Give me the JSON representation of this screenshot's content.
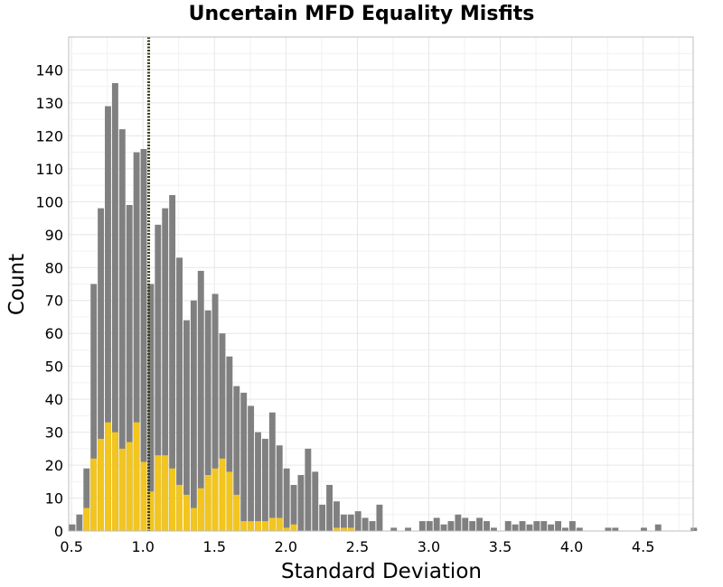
{
  "chart_data": {
    "type": "bar",
    "title": "Uncertain MFD Equality Misfits",
    "xlabel": "Standard Deviation",
    "ylabel": "Count",
    "xlim": [
      0.48,
      4.85
    ],
    "ylim": [
      0,
      150
    ],
    "bin_start": 0.48,
    "bin_width": 0.05,
    "x_ticks": [
      0.5,
      1.0,
      1.5,
      2.0,
      2.5,
      3.0,
      3.5,
      4.0,
      4.5
    ],
    "x_tick_labels": [
      "0.5",
      "1.0",
      "1.5",
      "2.0",
      "2.5",
      "3.0",
      "3.5",
      "4.0",
      "4.5"
    ],
    "y_ticks": [
      0,
      10,
      20,
      30,
      40,
      50,
      60,
      70,
      80,
      90,
      100,
      110,
      120,
      130,
      140
    ],
    "y_tick_labels": [
      "0",
      "10",
      "20",
      "30",
      "40",
      "50",
      "60",
      "70",
      "80",
      "90",
      "100",
      "110",
      "120",
      "130",
      "140"
    ],
    "grid": true,
    "reference_line": {
      "x": 1.04,
      "style": "dotted",
      "color": "#3a3a1a"
    },
    "series": [
      {
        "color": "#808080",
        "values": [
          2,
          5,
          19,
          75,
          98,
          129,
          136,
          122,
          99,
          115,
          116,
          75,
          93,
          98,
          102,
          83,
          64,
          70,
          79,
          67,
          72,
          60,
          53,
          44,
          42,
          38,
          30,
          28,
          36,
          26,
          19,
          14,
          17,
          25,
          18,
          8,
          14,
          9,
          5,
          5,
          6,
          4,
          3,
          8,
          0,
          1,
          0,
          1,
          0,
          3,
          3,
          4,
          2,
          3,
          5,
          4,
          3,
          4,
          3,
          1,
          0,
          3,
          2,
          3,
          2,
          3,
          3,
          2,
          3,
          1,
          3,
          1,
          0,
          0,
          0,
          1,
          1,
          0,
          0,
          0,
          1,
          0,
          2,
          0,
          0,
          0,
          0,
          1
        ]
      },
      {
        "color": "#f2c51f",
        "values": [
          0,
          0,
          7,
          22,
          28,
          33,
          30,
          25,
          27,
          33,
          21,
          12,
          23,
          23,
          19,
          14,
          11,
          7,
          13,
          17,
          19,
          22,
          18,
          11,
          3,
          3,
          3,
          3,
          4,
          4,
          1,
          2,
          0,
          0,
          0,
          0,
          0,
          1,
          1,
          1,
          0,
          0,
          0,
          0,
          0,
          0,
          0,
          0,
          0,
          0,
          0,
          0,
          0,
          0,
          0,
          0,
          0,
          0,
          0,
          0,
          0,
          0,
          0,
          0,
          0,
          0,
          0,
          0,
          0,
          0,
          0,
          0,
          0,
          0,
          0,
          0,
          0,
          0,
          0,
          0,
          0,
          0,
          0,
          0,
          0,
          0,
          0,
          0
        ]
      }
    ],
    "colors": {
      "background": "#ffffff",
      "grid": "#e6e6e6",
      "frame": "#bdbdbd"
    }
  }
}
